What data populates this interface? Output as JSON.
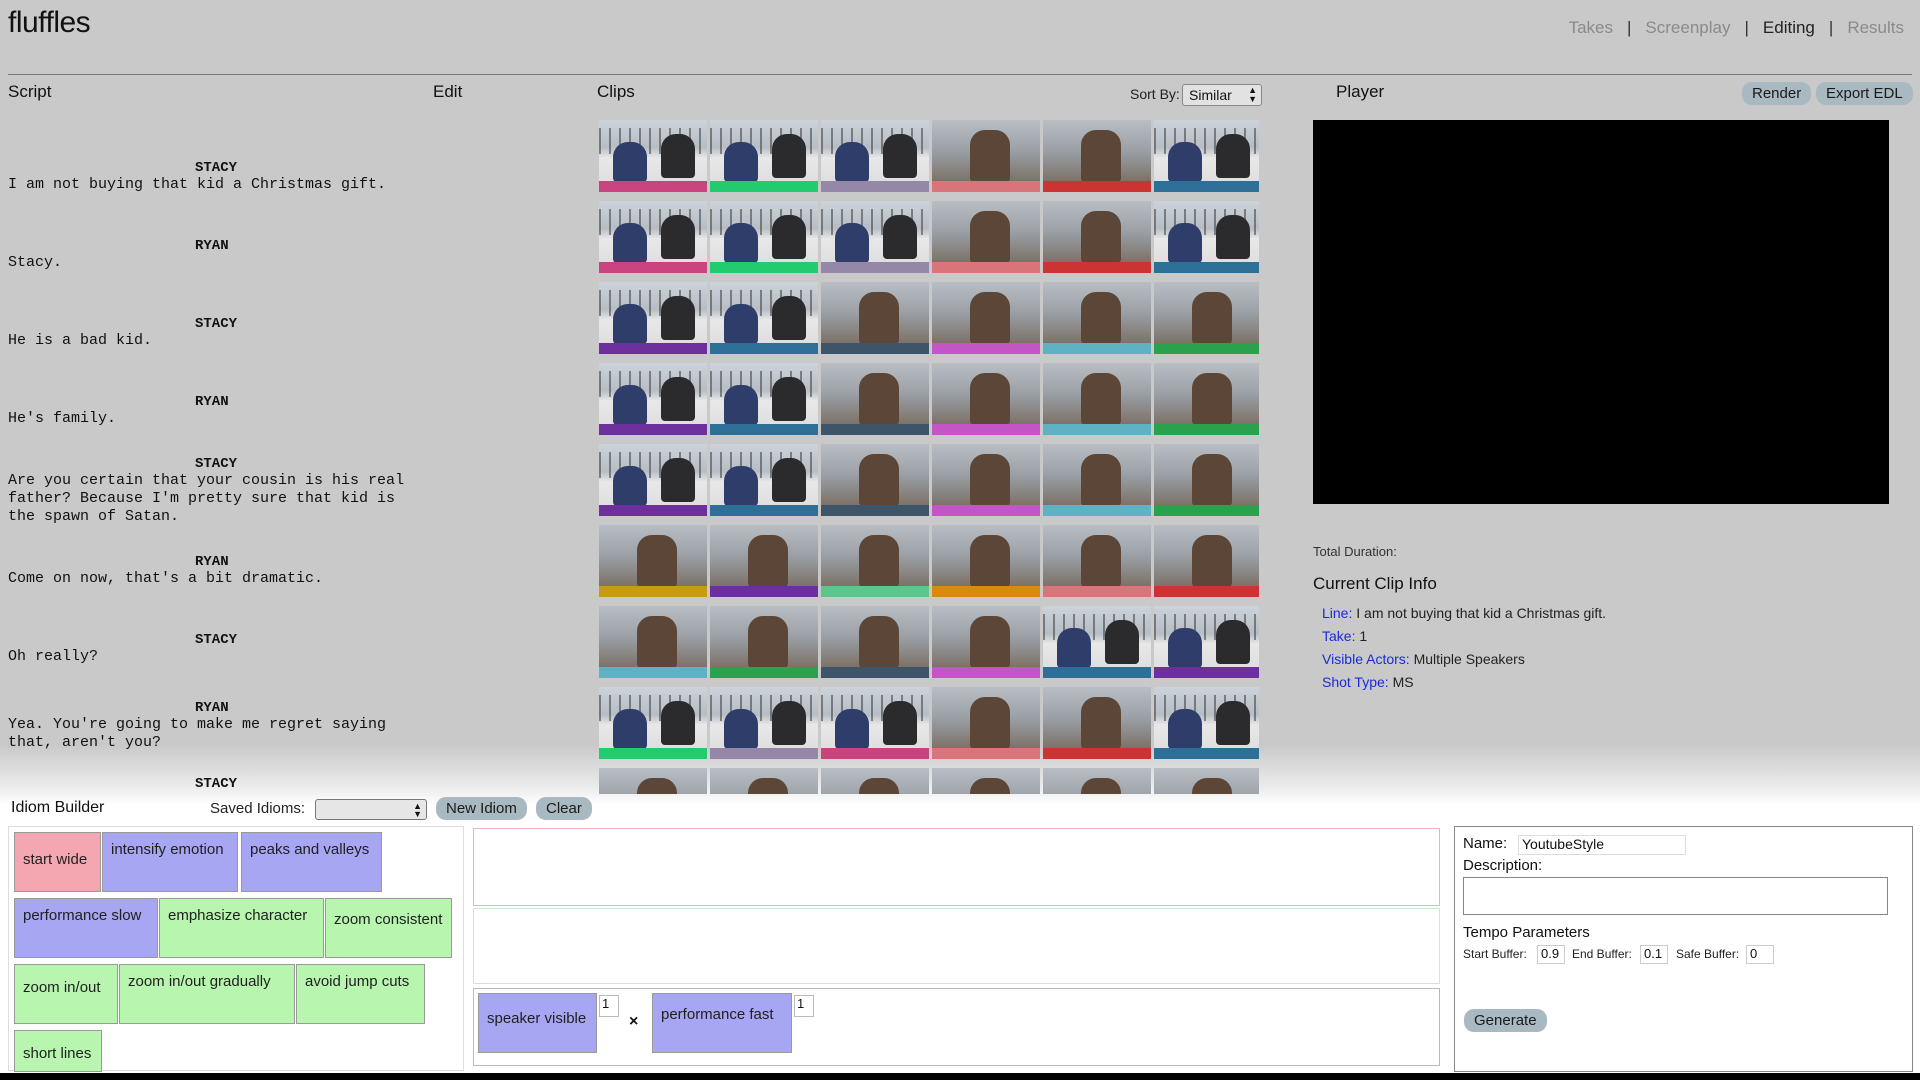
{
  "app": {
    "logo": "fluffles"
  },
  "nav": [
    {
      "label": "Takes",
      "active": false
    },
    {
      "label": "Screenplay",
      "active": false
    },
    {
      "label": "Editing",
      "active": true
    },
    {
      "label": "Results",
      "active": false
    }
  ],
  "columns": {
    "script": "Script",
    "edit": "Edit",
    "clips": "Clips",
    "player": "Player"
  },
  "sort": {
    "label": "Sort By:",
    "selected": "Similar"
  },
  "actions": {
    "render": "Render",
    "export": "Export EDL"
  },
  "script": [
    {
      "character": "STACY",
      "line": "I am not buying that kid a Christmas gift."
    },
    {
      "character": "RYAN",
      "line": "Stacy."
    },
    {
      "character": "STACY",
      "line": "He is a bad kid."
    },
    {
      "character": "RYAN",
      "line": "He's family."
    },
    {
      "character": "STACY",
      "line": "Are you certain that your cousin is his real\nfather? Because I'm pretty sure that kid is\nthe spawn of Satan."
    },
    {
      "character": "RYAN",
      "line": "Come on now, that's a bit dramatic."
    },
    {
      "character": "STACY",
      "line": "Oh really?"
    },
    {
      "character": "RYAN",
      "line": "Yea. You're going to make me regret saying\nthat, aren't you?"
    },
    {
      "character": "STACY",
      "line": ""
    }
  ],
  "clips": {
    "colors": {
      "pink": "#c9437f",
      "green": "#22cc6e",
      "lavender": "#9587a8",
      "salmon": "#d9747b",
      "red": "#cc3434",
      "blue": "#2e6f98",
      "purple": "#6d2f9c",
      "navy": "#3e5468",
      "magenta": "#c455c6",
      "teal": "#5fb2c3",
      "dkgreen": "#2aa14c",
      "mustard": "#c79c13",
      "mint": "#5ec58c",
      "orange": "#d9890f"
    },
    "rows": [
      [
        [
          "two",
          "pink"
        ],
        [
          "two",
          "green"
        ],
        [
          "two",
          "lavender"
        ],
        [
          "single",
          "salmon"
        ],
        [
          "single",
          "red"
        ],
        [
          "two",
          "blue"
        ]
      ],
      [
        [
          "two",
          "pink"
        ],
        [
          "two",
          "green"
        ],
        [
          "two",
          "lavender"
        ],
        [
          "single",
          "salmon"
        ],
        [
          "single",
          "red"
        ],
        [
          "two",
          "blue"
        ]
      ],
      [
        [
          "two",
          "purple"
        ],
        [
          "two",
          "blue"
        ],
        [
          "single",
          "navy"
        ],
        [
          "single",
          "magenta"
        ],
        [
          "single",
          "teal"
        ],
        [
          "single",
          "dkgreen"
        ]
      ],
      [
        [
          "two",
          "purple"
        ],
        [
          "two",
          "blue"
        ],
        [
          "single",
          "navy"
        ],
        [
          "single",
          "magenta"
        ],
        [
          "single",
          "teal"
        ],
        [
          "single",
          "dkgreen"
        ]
      ],
      [
        [
          "two",
          "purple"
        ],
        [
          "two",
          "blue"
        ],
        [
          "single",
          "navy"
        ],
        [
          "single",
          "magenta"
        ],
        [
          "single",
          "teal"
        ],
        [
          "single",
          "dkgreen"
        ]
      ],
      [
        [
          "single",
          "mustard"
        ],
        [
          "single",
          "purple"
        ],
        [
          "single",
          "mint"
        ],
        [
          "single",
          "orange"
        ],
        [
          "single",
          "salmon"
        ],
        [
          "single",
          "red"
        ]
      ],
      [
        [
          "single",
          "teal"
        ],
        [
          "single",
          "dkgreen"
        ],
        [
          "single",
          "navy"
        ],
        [
          "single",
          "magenta"
        ],
        [
          "two",
          "blue"
        ],
        [
          "two",
          "purple"
        ]
      ],
      [
        [
          "two",
          "green"
        ],
        [
          "two",
          "lavender"
        ],
        [
          "two",
          "pink"
        ],
        [
          "single",
          "salmon"
        ],
        [
          "single",
          "red"
        ],
        [
          "two",
          "blue"
        ]
      ],
      [
        [
          "single",
          "navy"
        ],
        [
          "single",
          "navy"
        ],
        [
          "single",
          "navy"
        ],
        [
          "single",
          "navy"
        ],
        [
          "single",
          "navy"
        ],
        [
          "single",
          "navy"
        ]
      ]
    ]
  },
  "player": {
    "total_duration_label": "Total Duration:",
    "current_clip_title": "Current Clip Info",
    "info": [
      {
        "key": "Line:",
        "value": "I am not buying that kid a Christmas gift."
      },
      {
        "key": "Take:",
        "value": "1"
      },
      {
        "key": "Visible Actors:",
        "value": "Multiple Speakers"
      },
      {
        "key": "Shot Type:",
        "value": "MS"
      }
    ]
  },
  "idiom_builder": {
    "title": "Idiom Builder",
    "saved_label": "Saved Idioms:",
    "saved_value": "",
    "new_idiom": "New Idiom",
    "clear": "Clear",
    "tiles": {
      "t0": "start wide",
      "t1": "intensify emotion",
      "t2": "peaks and valleys",
      "t3": "performance slow",
      "t4": "emphasize character",
      "t5": "zoom consistent",
      "t6": "zoom in/out",
      "t7": "zoom in/out gradually",
      "t8": "avoid jump cuts",
      "t9": "short lines"
    },
    "rule": {
      "a": "speaker visible",
      "a_weight": "1",
      "b": "performance fast",
      "b_weight": "1",
      "op": "×"
    },
    "settings": {
      "name_label": "Name:",
      "name_value": "YoutubeStyle",
      "description_label": "Description:",
      "tempo_title": "Tempo Parameters",
      "start_label": "Start Buffer:",
      "start_value": "0.9",
      "end_label": "End Buffer:",
      "end_value": "0.1",
      "safe_label": "Safe Buffer:",
      "safe_value": "0",
      "generate": "Generate"
    }
  }
}
